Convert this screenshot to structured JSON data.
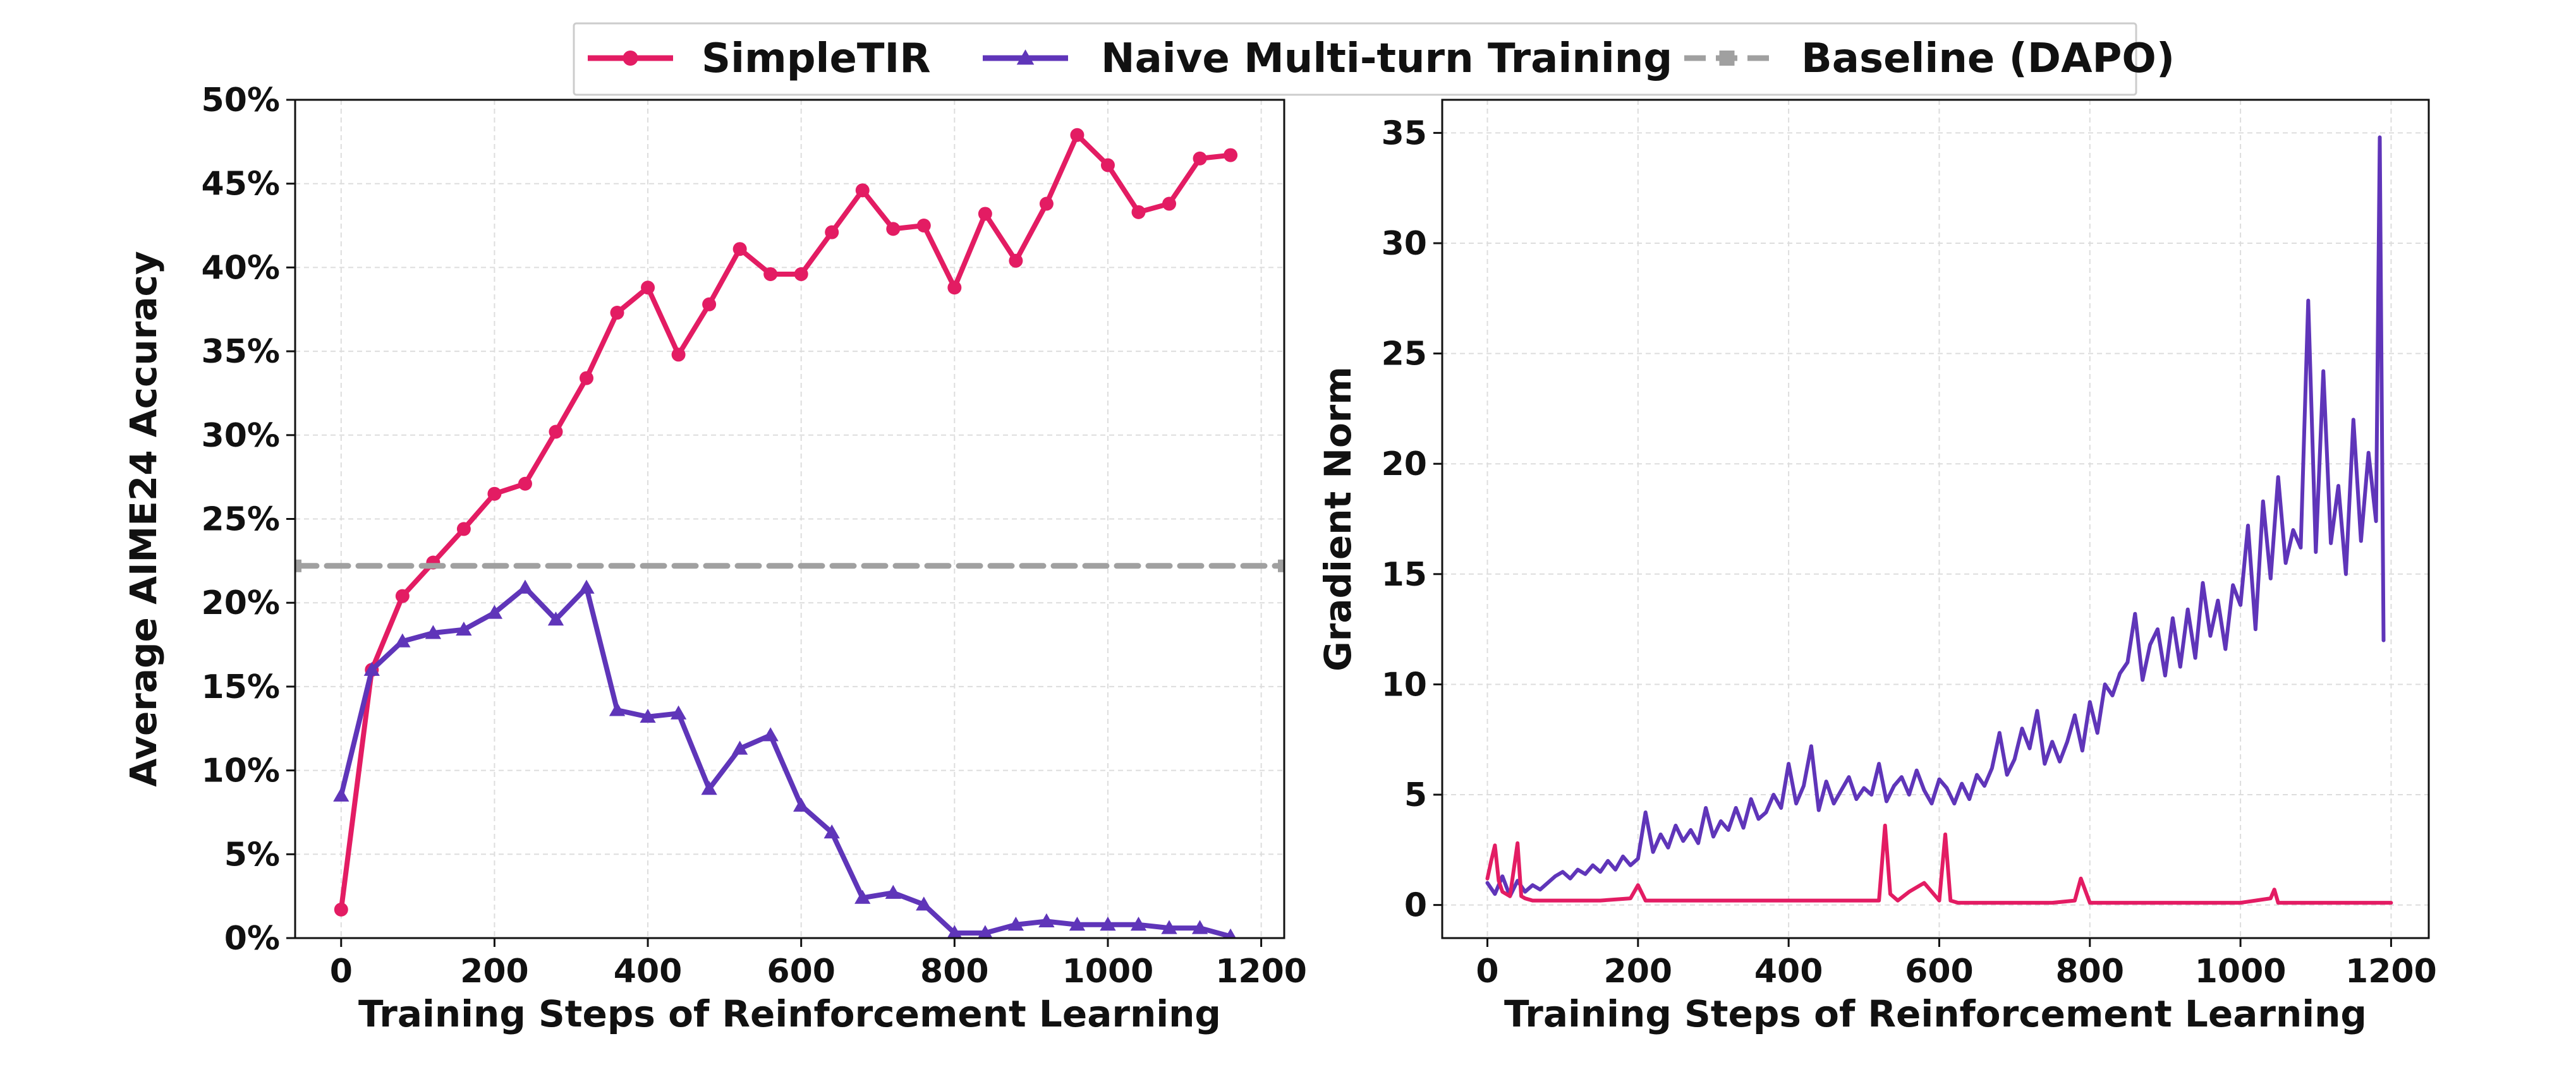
{
  "legend": {
    "position": "top-center",
    "items": [
      {
        "label": "SimpleTIR",
        "color": "#e31c63",
        "marker": "circle",
        "style": "solid"
      },
      {
        "label": "Naive Multi-turn Training",
        "color": "#5f35b9",
        "marker": "triangle",
        "style": "solid"
      },
      {
        "label": "Baseline (DAPO)",
        "color": "#a0a0a0",
        "marker": "square",
        "style": "dashed"
      }
    ]
  },
  "chart_data": [
    {
      "type": "line",
      "title": "",
      "xlabel": "Training Steps of Reinforcement Learning",
      "ylabel": "Average AIME24 Accuracy",
      "xlim": [
        -60,
        1230
      ],
      "ylim": [
        0,
        50
      ],
      "xticks": [
        0,
        200,
        400,
        600,
        800,
        1000,
        1200
      ],
      "yticks": [
        0,
        5,
        10,
        15,
        20,
        25,
        30,
        35,
        40,
        45,
        50
      ],
      "ytick_labels": [
        "0%",
        "5%",
        "10%",
        "15%",
        "20%",
        "25%",
        "30%",
        "35%",
        "40%",
        "45%",
        "50%"
      ],
      "grid": true,
      "series": [
        {
          "name": "SimpleTIR",
          "color": "#e31c63",
          "marker": "circle",
          "x": [
            0,
            40,
            80,
            120,
            160,
            200,
            240,
            280,
            320,
            360,
            400,
            440,
            480,
            520,
            560,
            600,
            640,
            680,
            720,
            760,
            800,
            840,
            880,
            920,
            960,
            1000,
            1040,
            1080,
            1120,
            1160
          ],
          "y": [
            1.7,
            16.0,
            20.4,
            22.4,
            24.4,
            26.5,
            27.1,
            30.2,
            33.4,
            37.3,
            38.8,
            34.8,
            37.8,
            41.1,
            39.6,
            39.6,
            42.1,
            44.6,
            42.3,
            42.5,
            38.8,
            43.2,
            40.4,
            43.8,
            47.9,
            46.1,
            43.3,
            43.8,
            46.5,
            46.7
          ]
        },
        {
          "name": "Naive Multi-turn Training",
          "color": "#5f35b9",
          "marker": "triangle",
          "x": [
            0,
            40,
            80,
            120,
            160,
            200,
            240,
            280,
            320,
            360,
            400,
            440,
            480,
            520,
            560,
            600,
            640,
            680,
            720,
            760,
            800,
            840,
            880,
            920,
            960,
            1000,
            1040,
            1080,
            1120,
            1160
          ],
          "y": [
            8.5,
            16.0,
            17.7,
            18.2,
            18.4,
            19.4,
            20.9,
            19.0,
            20.9,
            13.6,
            13.2,
            13.4,
            8.9,
            11.3,
            12.1,
            7.9,
            6.3,
            2.4,
            2.7,
            2.0,
            0.3,
            0.3,
            0.8,
            1.0,
            0.8,
            0.8,
            0.8,
            0.6,
            0.6,
            0.1
          ]
        },
        {
          "name": "Baseline (DAPO)",
          "color": "#a0a0a0",
          "marker": "square",
          "dashed": true,
          "x": [
            -60,
            1230
          ],
          "y": [
            22.2,
            22.2
          ]
        }
      ]
    },
    {
      "type": "line",
      "title": "",
      "xlabel": "Training Steps of Reinforcement Learning",
      "ylabel": "Gradient Norm",
      "xlim": [
        -60,
        1250
      ],
      "ylim": [
        -1.5,
        36.5
      ],
      "xticks": [
        0,
        200,
        400,
        600,
        800,
        1000,
        1200
      ],
      "yticks": [
        0,
        5,
        10,
        15,
        20,
        25,
        30,
        35
      ],
      "grid": true,
      "series": [
        {
          "name": "Naive Multi-turn Training",
          "color": "#5f35b9",
          "x": [
            0,
            10,
            20,
            30,
            40,
            50,
            60,
            70,
            80,
            90,
            100,
            110,
            120,
            130,
            140,
            150,
            160,
            170,
            180,
            190,
            200,
            210,
            220,
            230,
            240,
            250,
            260,
            270,
            280,
            290,
            300,
            310,
            320,
            330,
            340,
            350,
            360,
            370,
            380,
            390,
            400,
            410,
            420,
            430,
            440,
            450,
            460,
            470,
            480,
            490,
            500,
            510,
            520,
            530,
            540,
            550,
            560,
            570,
            580,
            590,
            600,
            610,
            620,
            630,
            640,
            650,
            660,
            670,
            680,
            690,
            700,
            710,
            720,
            730,
            740,
            750,
            760,
            770,
            780,
            790,
            800,
            810,
            820,
            830,
            840,
            850,
            860,
            870,
            880,
            890,
            900,
            910,
            920,
            930,
            940,
            950,
            960,
            970,
            980,
            990,
            1000,
            1010,
            1020,
            1030,
            1040,
            1050,
            1060,
            1070,
            1080,
            1090,
            1100,
            1110,
            1120,
            1130,
            1140,
            1150,
            1160,
            1170,
            1180,
            1185,
            1190
          ],
          "y": [
            1.0,
            0.5,
            1.3,
            0.4,
            1.1,
            0.6,
            0.9,
            0.7,
            1.0,
            1.3,
            1.5,
            1.2,
            1.6,
            1.4,
            1.8,
            1.5,
            2.0,
            1.6,
            2.2,
            1.8,
            2.1,
            4.2,
            2.4,
            3.2,
            2.6,
            3.6,
            2.9,
            3.4,
            2.8,
            4.4,
            3.1,
            3.8,
            3.4,
            4.4,
            3.5,
            4.8,
            3.9,
            4.2,
            5.0,
            4.4,
            6.4,
            4.6,
            5.4,
            7.2,
            4.3,
            5.6,
            4.6,
            5.2,
            5.8,
            4.8,
            5.3,
            5.0,
            6.4,
            4.7,
            5.4,
            5.8,
            5.0,
            6.1,
            5.2,
            4.6,
            5.7,
            5.3,
            4.6,
            5.5,
            4.8,
            5.9,
            5.4,
            6.2,
            7.8,
            5.9,
            6.6,
            8.0,
            7.1,
            8.8,
            6.4,
            7.4,
            6.5,
            7.4,
            8.6,
            7.0,
            9.2,
            7.8,
            10.0,
            9.5,
            10.5,
            11.0,
            13.2,
            10.2,
            11.8,
            12.5,
            10.4,
            13.0,
            10.8,
            13.4,
            11.2,
            14.6,
            12.2,
            13.8,
            11.6,
            14.5,
            13.6,
            17.2,
            12.5,
            18.3,
            14.8,
            19.4,
            15.5,
            17.0,
            16.2,
            27.4,
            16.0,
            24.2,
            16.4,
            19.0,
            15.0,
            22.0,
            16.5,
            20.5,
            17.4,
            34.8,
            12.0
          ]
        },
        {
          "name": "SimpleTIR",
          "color": "#e31c63",
          "x": [
            0,
            5,
            10,
            15,
            20,
            30,
            40,
            45,
            50,
            60,
            80,
            100,
            150,
            190,
            200,
            210,
            250,
            300,
            350,
            400,
            450,
            500,
            520,
            528,
            535,
            545,
            560,
            580,
            600,
            608,
            615,
            625,
            650,
            700,
            750,
            780,
            788,
            800,
            850,
            900,
            950,
            1000,
            1040,
            1045,
            1050,
            1100,
            1150,
            1200
          ],
          "y": [
            1.2,
            2.0,
            2.7,
            1.1,
            0.6,
            0.4,
            2.8,
            0.4,
            0.3,
            0.2,
            0.2,
            0.2,
            0.2,
            0.3,
            0.9,
            0.2,
            0.2,
            0.2,
            0.2,
            0.2,
            0.2,
            0.2,
            0.2,
            3.6,
            0.5,
            0.2,
            0.6,
            1.0,
            0.2,
            3.2,
            0.2,
            0.1,
            0.1,
            0.1,
            0.1,
            0.2,
            1.2,
            0.1,
            0.1,
            0.1,
            0.1,
            0.1,
            0.3,
            0.7,
            0.1,
            0.1,
            0.1,
            0.1
          ]
        }
      ]
    }
  ]
}
